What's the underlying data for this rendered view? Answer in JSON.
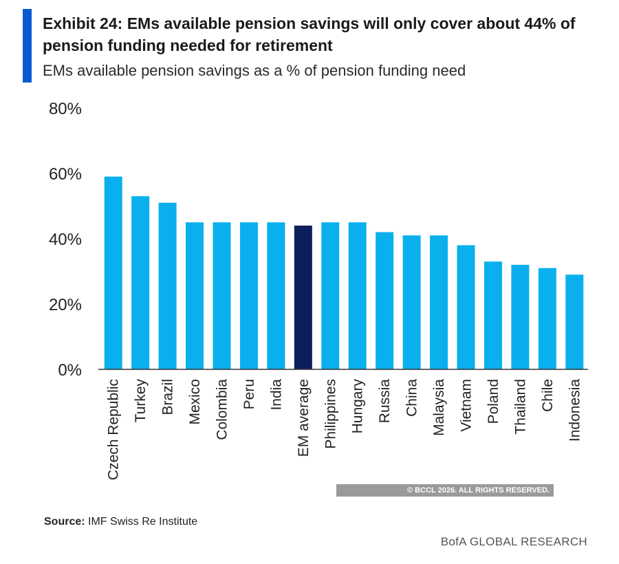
{
  "header": {
    "title": "Exhibit 24: EMs available pension savings will only cover about 44% of pension funding needed for retirement",
    "subtitle": "EMs available pension savings as a % of pension funding need"
  },
  "colors": {
    "accent": "#0a5ad4",
    "bar": "#0ab0ee",
    "highlight_bar": "#0c1f5c"
  },
  "chart_data": {
    "type": "bar",
    "categories": [
      "Czech Republic",
      "Turkey",
      "Brazil",
      "Mexico",
      "Colombia",
      "Peru",
      "India",
      "EM average",
      "Philippines",
      "Hungary",
      "Russia",
      "China",
      "Malaysia",
      "Vietnam",
      "Poland",
      "Thailand",
      "Chile",
      "Indonesia"
    ],
    "values": [
      59,
      53,
      51,
      45,
      45,
      45,
      45,
      44,
      45,
      45,
      42,
      41,
      41,
      38,
      33,
      32,
      31,
      29
    ],
    "highlight": "EM average",
    "ylim": [
      0,
      80
    ],
    "yticks": [
      "0%",
      "20%",
      "40%",
      "60%",
      "80%"
    ],
    "grid": false,
    "legend": "none"
  },
  "watermark": "© BCCL 2026. ALL RIGHTS RESERVED.",
  "source": {
    "label": "Source:",
    "text": "IMF Swiss Re Institute"
  },
  "brand": "BofA GLOBAL RESEARCH"
}
